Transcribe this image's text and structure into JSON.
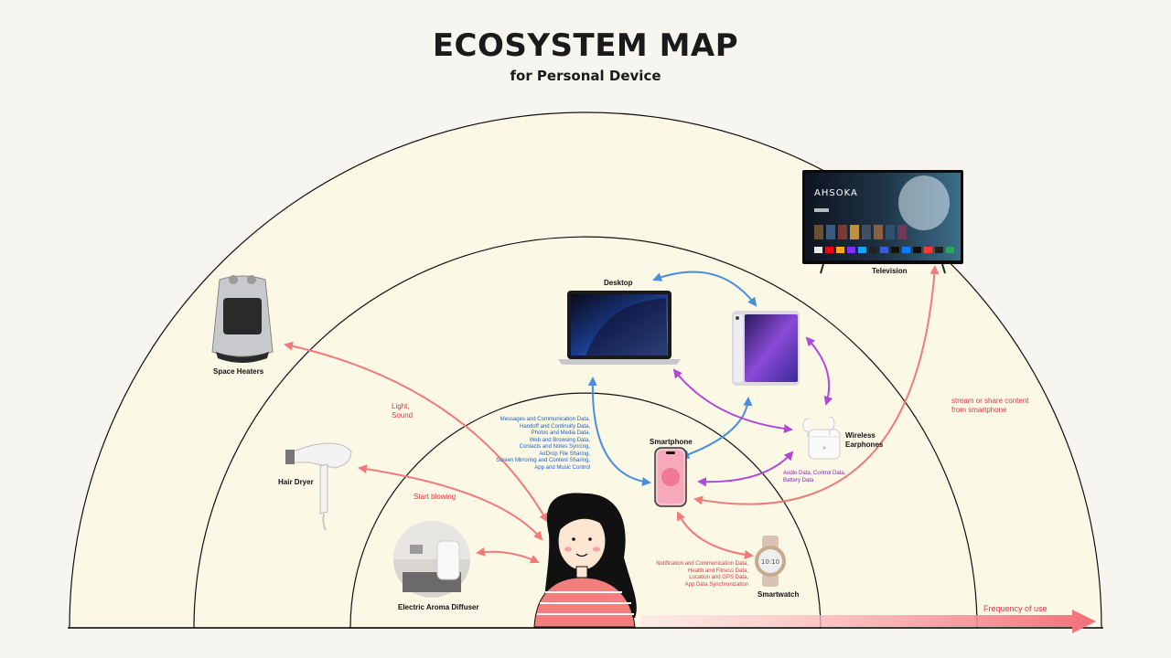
{
  "title": "ECOSYSTEM MAP",
  "subtitle": "for Personal Device",
  "devices": {
    "desktop": "Desktop",
    "television": "Television",
    "space_heaters": "Space Heaters",
    "hair_dryer": "Hair Dryer",
    "aroma_diffuser": "Electric Aroma Diffuser",
    "smartphone": "Smartphone",
    "wireless_earphones": "Wireless\nEarphones",
    "smartwatch": "Smartwatch"
  },
  "notes": {
    "desktop_data": "Messages and Communication Data,\nHandoff and Continuity Data,\nPhotos and Media Data,\nWeb and Browsing Data,\nContacts and Notes Syncing,\nAirDrop File Sharing,\nScreen Mirroring and Content Sharing,\nApp and Music Control",
    "heater": "Light,\nSound",
    "dryer": "Start blowing",
    "tv": "stream or share content\nfrom smartphone",
    "earphones": "Audio Data, Control Data,\nBattery Data",
    "watch": "Notification and Communication Data,\nHealth and Fitness Data,\nLocation and GPS Data,\nApp Data Synchronization"
  },
  "axis": {
    "label": "Frequency of use"
  },
  "tv_screen": {
    "show_title": "AHSOKA"
  },
  "colors": {
    "ring_fill": "#fbf8e6",
    "ring_stroke": "#111111",
    "blue": "#4a8fdc",
    "purple": "#b049d8",
    "red": "#f07a7a",
    "label_blue": "#1f5fbf",
    "label_red": "#d43a45",
    "label_purple": "#8a1fc0"
  }
}
